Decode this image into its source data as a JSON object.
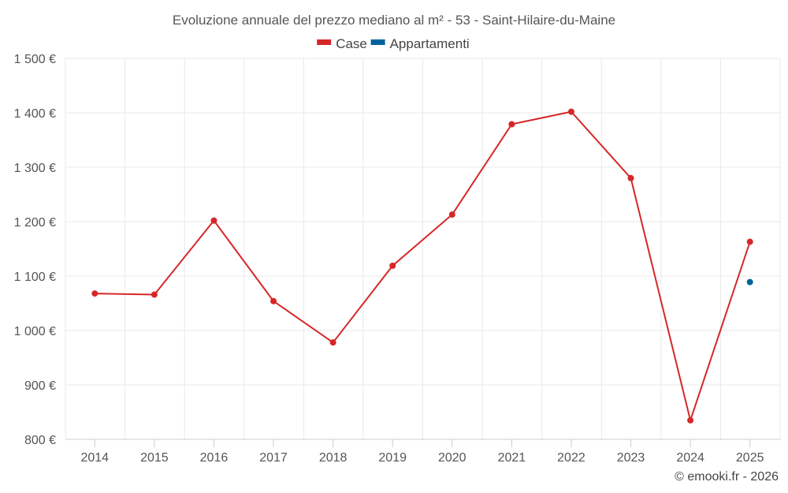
{
  "chart_data": {
    "type": "line",
    "title": "Evoluzione annuale del prezzo mediano al m² - 53 - Saint-Hilaire-du-Maine",
    "categories": [
      "2014",
      "2015",
      "2016",
      "2017",
      "2018",
      "2019",
      "2020",
      "2021",
      "2022",
      "2023",
      "2024",
      "2025"
    ],
    "ylim": [
      800,
      1500
    ],
    "yticks": [
      800,
      900,
      1000,
      1100,
      1200,
      1300,
      1400,
      1500
    ],
    "ytick_labels": [
      "800 €",
      "900 €",
      "1 000 €",
      "1 100 €",
      "1 200 €",
      "1 300 €",
      "1 400 €",
      "1 500 €"
    ],
    "grid": true,
    "legend_position": "top-center",
    "series": [
      {
        "name": "Case",
        "color": "#d62728",
        "values": [
          1068,
          1066,
          1202,
          1054,
          978,
          1119,
          1213,
          1379,
          1402,
          1280,
          835,
          1163
        ]
      },
      {
        "name": "Appartamenti",
        "color": "#00629b",
        "values": [
          null,
          null,
          null,
          null,
          null,
          null,
          null,
          null,
          null,
          null,
          null,
          1089
        ]
      }
    ]
  },
  "credit": "© emooki.fr - 2026"
}
